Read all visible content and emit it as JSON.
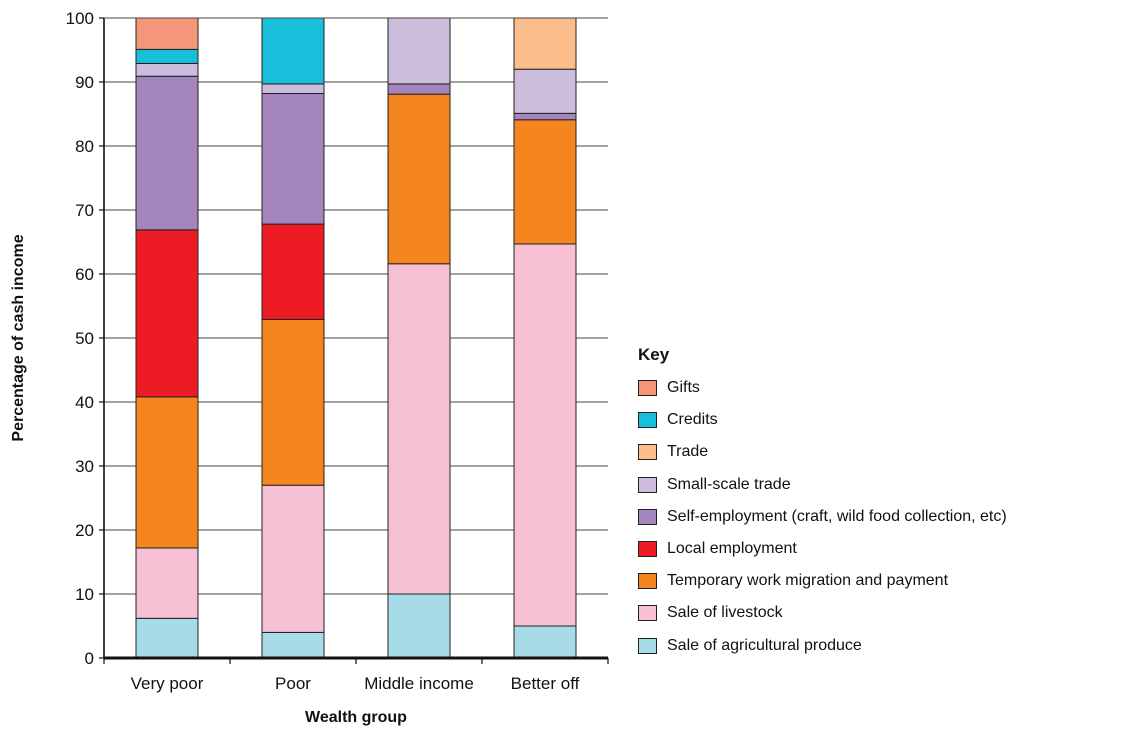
{
  "chart_data": {
    "type": "bar",
    "stacked": true,
    "title": "",
    "xlabel": "Wealth group",
    "ylabel": "Percentage of cash income",
    "ylim": [
      0,
      100
    ],
    "yticks": [
      0,
      10,
      20,
      30,
      40,
      50,
      60,
      70,
      80,
      90,
      100
    ],
    "grid": true,
    "legend_position": "right",
    "legend_title": "Key",
    "categories": [
      "Very poor",
      "Poor",
      "Middle income",
      "Better off"
    ],
    "series": [
      {
        "name": "Sale of agricultural produce",
        "color": "#a6dbe7",
        "values": [
          6.2,
          4.0,
          10.0,
          5.0
        ]
      },
      {
        "name": "Sale of livestock",
        "color": "#f7c0d4",
        "values": [
          11.0,
          23.0,
          51.6,
          59.7
        ]
      },
      {
        "name": "Temporary work migration and payment",
        "color": "#f5861f",
        "values": [
          23.6,
          25.9,
          26.5,
          19.4
        ]
      },
      {
        "name": "Local employment",
        "color": "#ed1c24",
        "values": [
          26.1,
          14.9,
          0,
          0
        ]
      },
      {
        "name": "Self-employment (craft, wild food collection, etc)",
        "color": "#a585bd",
        "values": [
          24.0,
          20.4,
          1.6,
          1.0
        ]
      },
      {
        "name": "Small-scale trade",
        "color": "#cdbddc",
        "values": [
          2.0,
          1.5,
          10.3,
          6.9
        ]
      },
      {
        "name": "Trade",
        "color": "#fcbd8c",
        "values": [
          0,
          0,
          0,
          8.0
        ]
      },
      {
        "name": "Credits",
        "color": "#17bfdb",
        "values": [
          2.2,
          10.3,
          0,
          0
        ]
      },
      {
        "name": "Gifts",
        "color": "#f69679",
        "values": [
          4.9,
          0,
          0,
          0
        ]
      }
    ]
  }
}
